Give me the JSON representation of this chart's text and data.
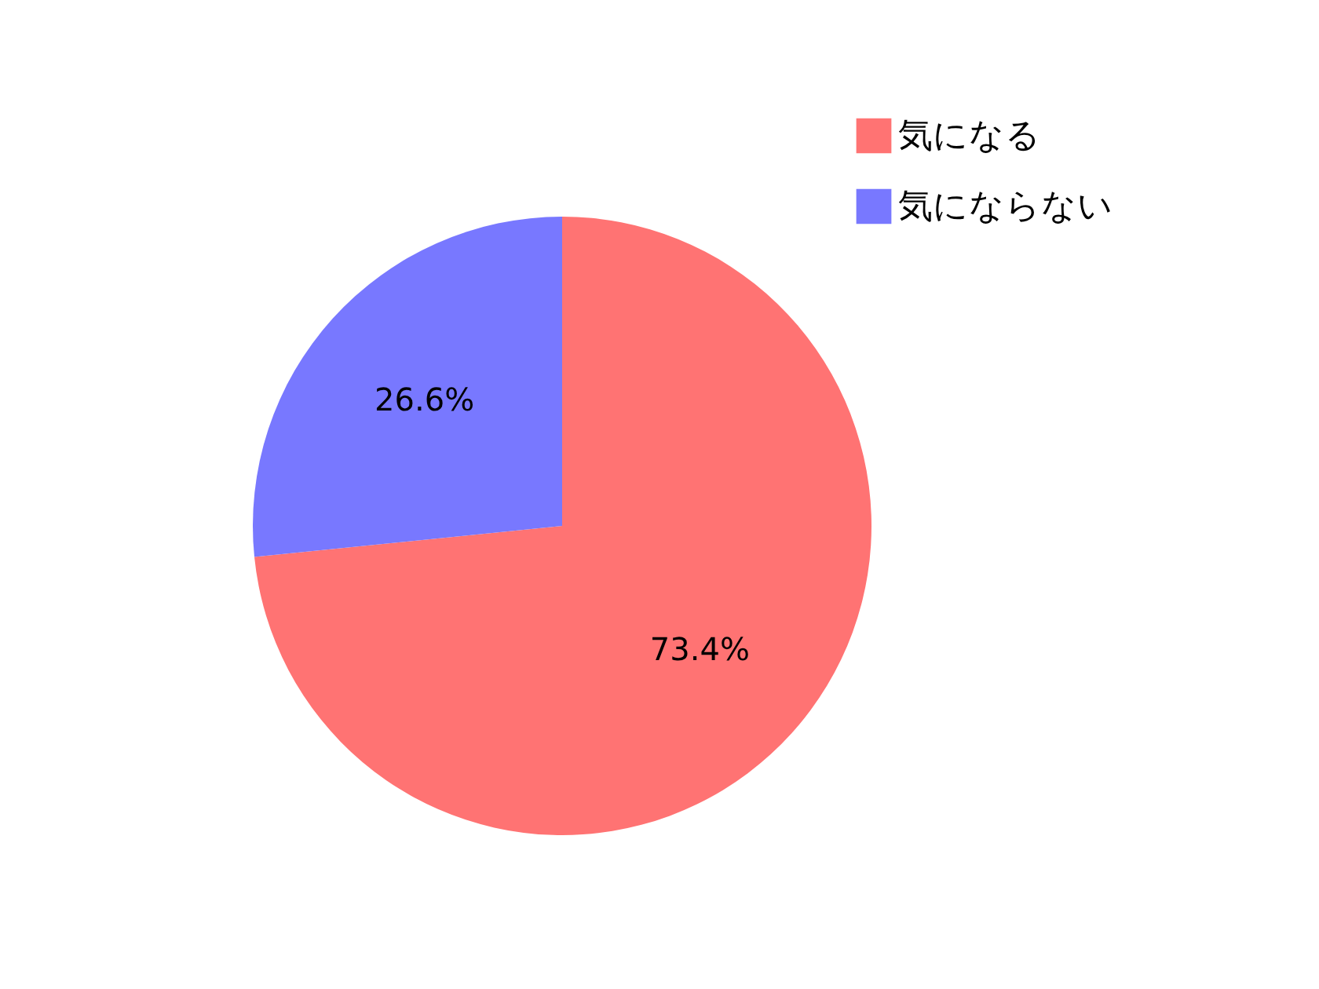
{
  "chart_data": {
    "type": "pie",
    "categories": [
      "気になる",
      "気にならない"
    ],
    "values": [
      73.4,
      26.6
    ],
    "colors": [
      "#ff7373",
      "#7878ff"
    ],
    "value_labels": [
      "73.4%",
      "26.6%"
    ],
    "legend": "top right"
  }
}
